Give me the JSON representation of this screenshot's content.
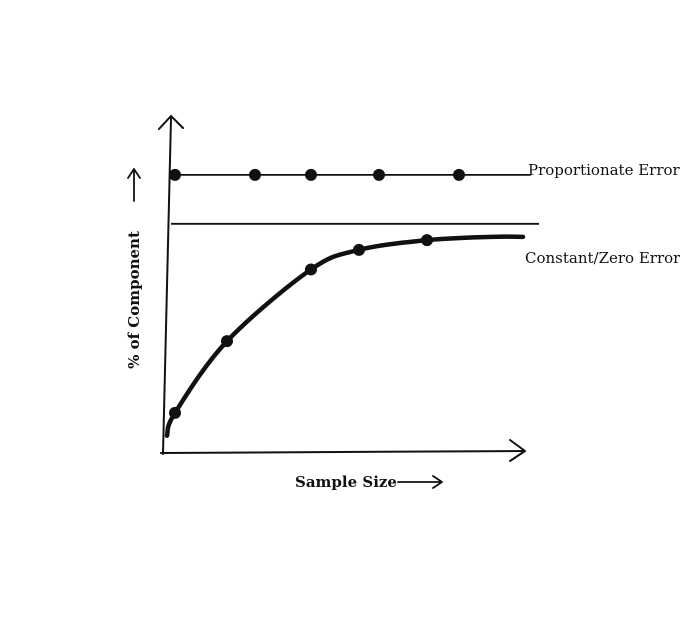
{
  "chart_data": {
    "type": "line",
    "title": "",
    "xlabel": "Sample Size",
    "ylabel": "% of Component",
    "grid": false,
    "legend": "none",
    "series": [
      {
        "name": "Proportionate Error",
        "x": [
          0.3,
          2.3,
          3.7,
          5.4,
          7.4
        ],
        "values": [
          85,
          85,
          85,
          85,
          85
        ]
      },
      {
        "name": "Constant/Zero Error",
        "x": [
          0.3,
          1.6,
          3.7,
          4.9,
          6.6
        ],
        "values": [
          12,
          34,
          56,
          62,
          65
        ]
      }
    ],
    "reference_line": {
      "y": 70
    },
    "xlim": [
      0,
      9
    ],
    "ylim": [
      0,
      100
    ],
    "colors": {
      "line": "#111111",
      "background": "#ffffff"
    }
  }
}
